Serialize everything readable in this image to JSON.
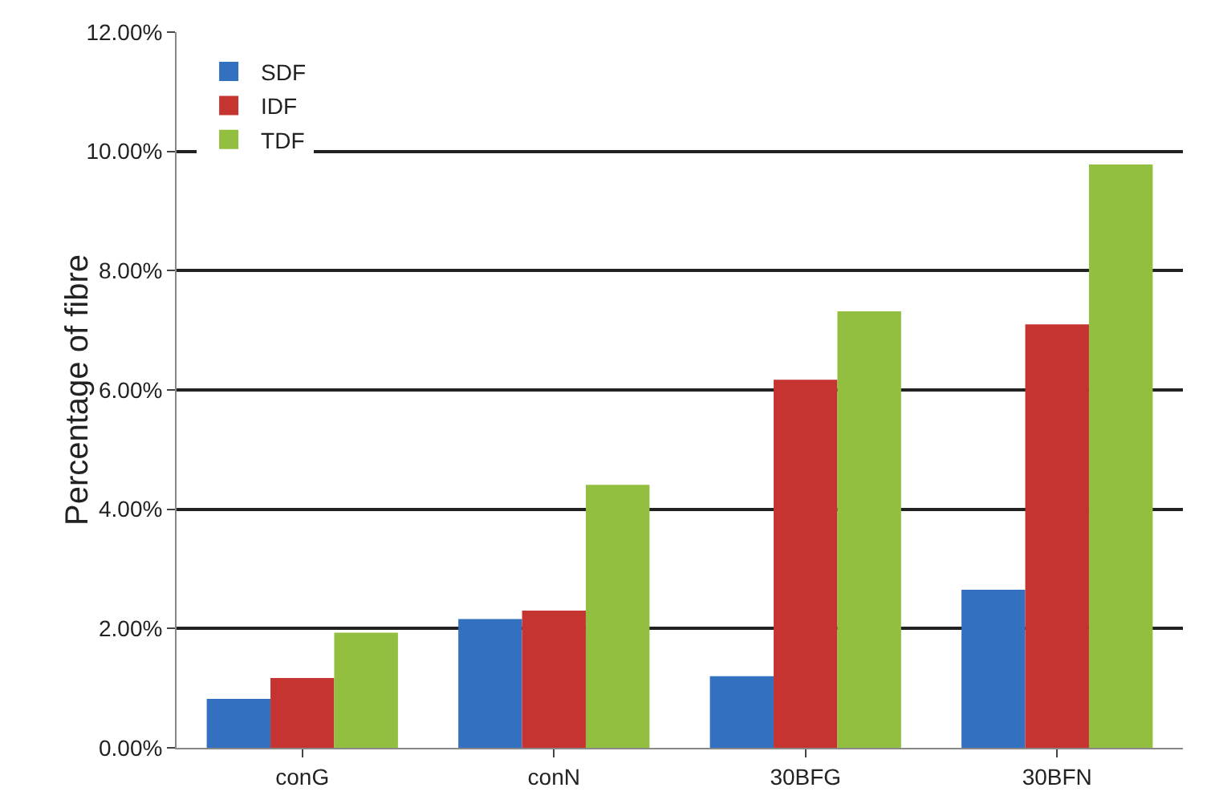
{
  "chart_data": {
    "type": "bar",
    "ylabel": "Percentage of fibre",
    "categories": [
      "conG",
      "conN",
      "30BFG",
      "30BFN"
    ],
    "series": [
      {
        "name": "SDF",
        "color": "#3370c0",
        "values": [
          0.82,
          2.16,
          1.2,
          2.65
        ]
      },
      {
        "name": "IDF",
        "color": "#c53431",
        "values": [
          1.17,
          2.3,
          6.17,
          7.1
        ]
      },
      {
        "name": "TDF",
        "color": "#93bf40",
        "values": [
          1.93,
          4.41,
          7.32,
          9.78
        ]
      }
    ],
    "ylim": [
      0,
      12
    ],
    "yticks": [
      {
        "value": 0,
        "label": "0.00%"
      },
      {
        "value": 2,
        "label": "2.00%"
      },
      {
        "value": 4,
        "label": "4.00%"
      },
      {
        "value": 6,
        "label": "6.00%"
      },
      {
        "value": 8,
        "label": "8.00%"
      },
      {
        "value": 10,
        "label": "10.00%"
      },
      {
        "value": 12,
        "label": "12.00%"
      }
    ],
    "grid": "y",
    "legend": "top left"
  }
}
